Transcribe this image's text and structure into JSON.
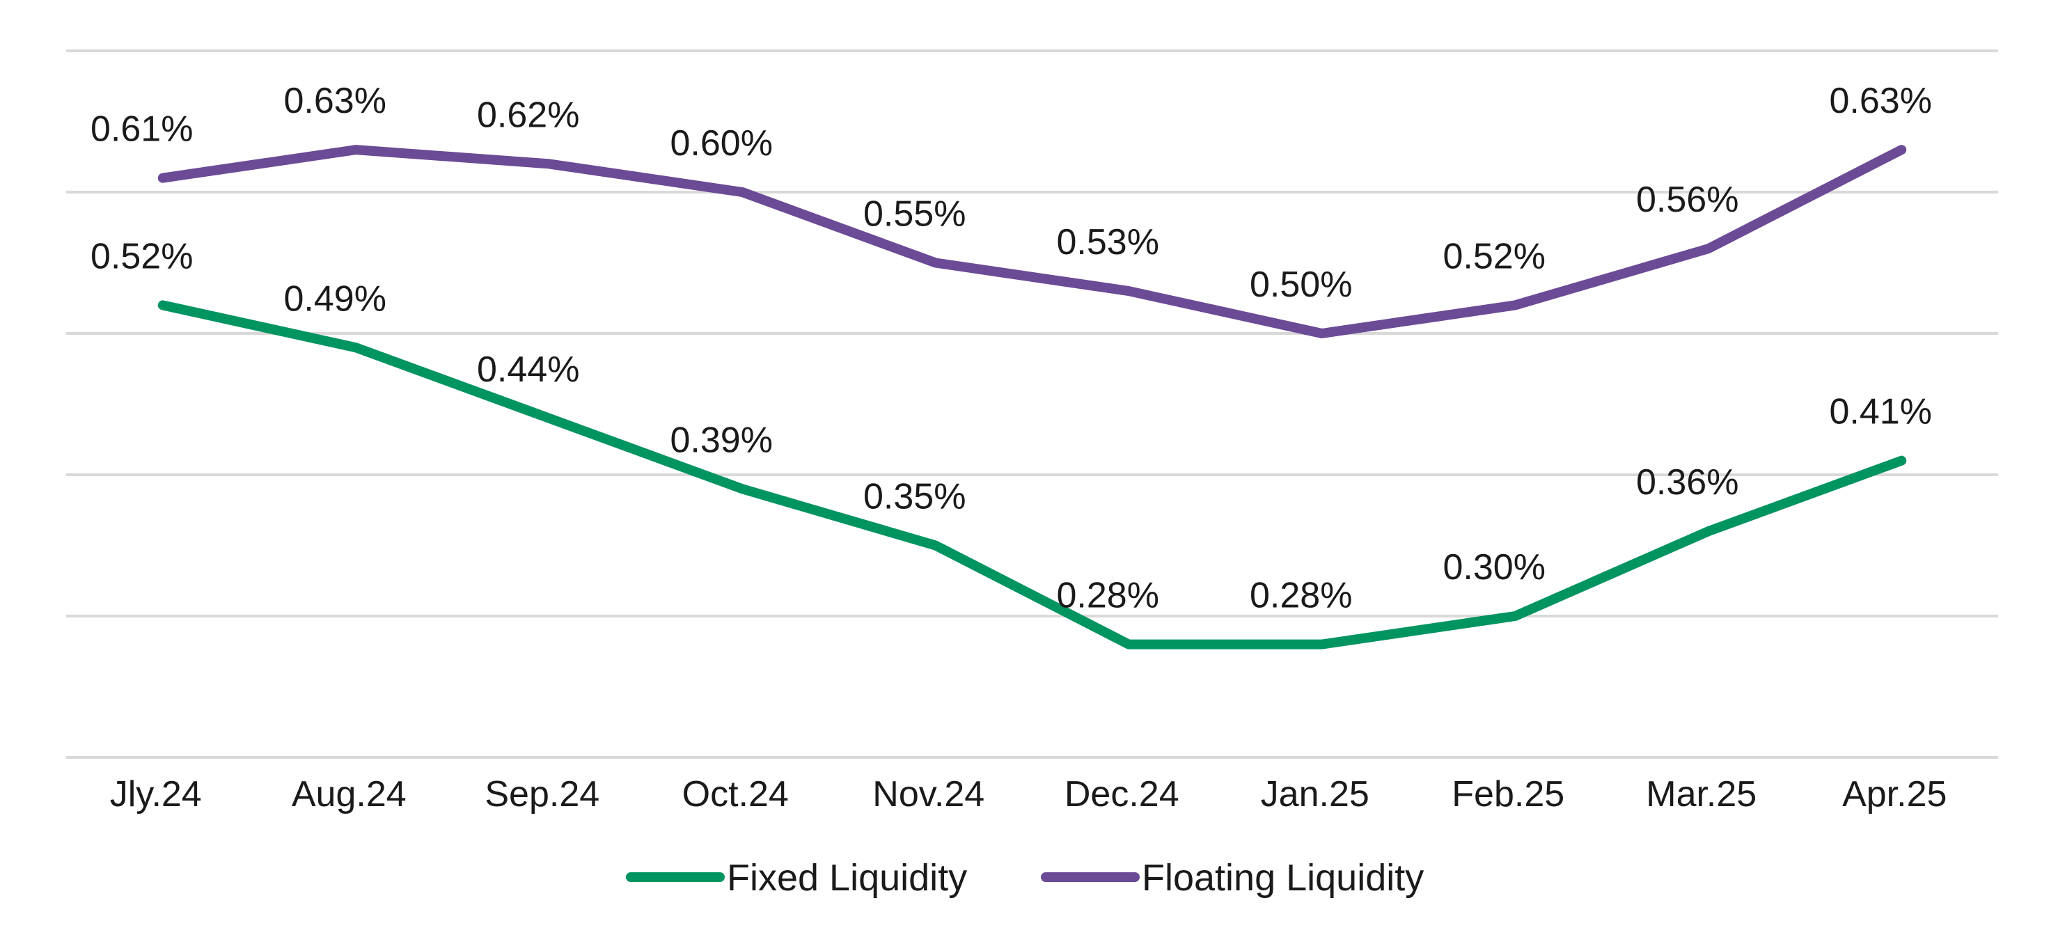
{
  "chart_data": {
    "type": "line",
    "title": "",
    "xlabel": "",
    "ylabel": "",
    "categories": [
      "Jly.24",
      "Aug.24",
      "Sep.24",
      "Oct.24",
      "Nov.24",
      "Dec.24",
      "Jan.25",
      "Feb.25",
      "Mar.25",
      "Apr.25"
    ],
    "ylim": [
      0.2,
      0.7
    ],
    "grid": true,
    "legend_position": "bottom",
    "series": [
      {
        "name": "Fixed Liquidity",
        "color": "#009460",
        "values": [
          0.52,
          0.49,
          0.44,
          0.39,
          0.35,
          0.28,
          0.28,
          0.3,
          0.36,
          0.41
        ],
        "labels": [
          "0.52%",
          "0.49%",
          "0.44%",
          "0.39%",
          "0.35%",
          "0.28%",
          "0.28%",
          "0.30%",
          "0.36%",
          "0.41%"
        ]
      },
      {
        "name": "Floating Liquidity",
        "color": "#6b4a96",
        "values": [
          0.61,
          0.63,
          0.62,
          0.6,
          0.55,
          0.53,
          0.5,
          0.52,
          0.56,
          0.63
        ],
        "labels": [
          "0.61%",
          "0.63%",
          "0.62%",
          "0.60%",
          "0.55%",
          "0.53%",
          "0.50%",
          "0.52%",
          "0.56%",
          "0.63%"
        ]
      }
    ]
  }
}
